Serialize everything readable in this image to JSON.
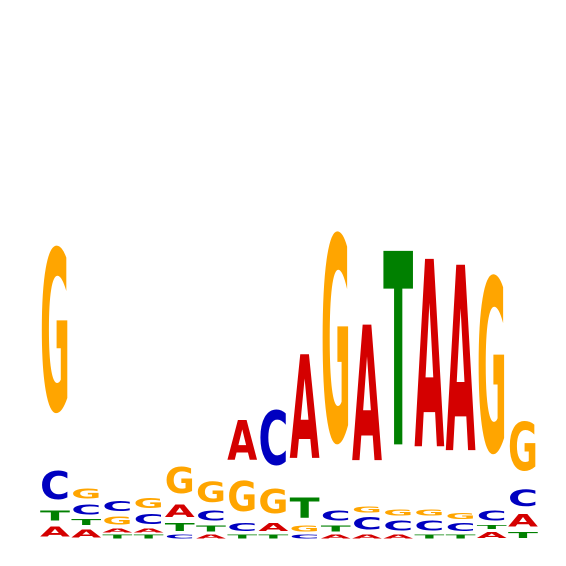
{
  "logo": {
    "type": "sequence-logo",
    "alphabet": [
      "A",
      "C",
      "G",
      "T"
    ],
    "colors": {
      "A": "#d40000",
      "C": "#0000c0",
      "G": "#ffa500",
      "T": "#008000"
    },
    "positions": [
      [
        {
          "base": "A",
          "bits": 0.05
        },
        {
          "base": "T",
          "bits": 0.05
        },
        {
          "base": "C",
          "bits": 0.14
        },
        {
          "base": "G",
          "bits": 0.81
        }
      ],
      [
        {
          "base": "A",
          "bits": 0.04
        },
        {
          "base": "T",
          "bits": 0.03
        },
        {
          "base": "C",
          "bits": 0.05
        },
        {
          "base": "G",
          "bits": 0.05
        }
      ],
      [
        {
          "base": "T",
          "bits": 0.02
        },
        {
          "base": "A",
          "bits": 0.02
        },
        {
          "base": "G",
          "bits": 0.04
        },
        {
          "base": "C",
          "bits": 0.05
        }
      ],
      [
        {
          "base": "T",
          "bits": 0.02
        },
        {
          "base": "A",
          "bits": 0.02
        },
        {
          "base": "C",
          "bits": 0.05
        },
        {
          "base": "G",
          "bits": 0.05
        }
      ],
      [
        {
          "base": "C",
          "bits": 0.02
        },
        {
          "base": "T",
          "bits": 0.04
        },
        {
          "base": "A",
          "bits": 0.06
        },
        {
          "base": "G",
          "bits": 0.13
        }
      ],
      [
        {
          "base": "A",
          "bits": 0.02
        },
        {
          "base": "T",
          "bits": 0.03
        },
        {
          "base": "C",
          "bits": 0.05
        },
        {
          "base": "G",
          "bits": 0.1
        }
      ],
      [
        {
          "base": "T",
          "bits": 0.02
        },
        {
          "base": "C",
          "bits": 0.04
        },
        {
          "base": "G",
          "bits": 0.15
        },
        {
          "base": "A",
          "bits": 0.2
        }
      ],
      [
        {
          "base": "T",
          "bits": 0.02
        },
        {
          "base": "A",
          "bits": 0.04
        },
        {
          "base": "G",
          "bits": 0.12
        },
        {
          "base": "C",
          "bits": 0.27
        }
      ],
      [
        {
          "base": "C",
          "bits": 0.02
        },
        {
          "base": "G",
          "bits": 0.03
        },
        {
          "base": "T",
          "bits": 0.1
        },
        {
          "base": "A",
          "bits": 0.52
        }
      ],
      [
        {
          "base": "A",
          "bits": 0.02
        },
        {
          "base": "T",
          "bits": 0.03
        },
        {
          "base": "C",
          "bits": 0.05
        },
        {
          "base": "G",
          "bits": 1.03
        }
      ],
      [
        {
          "base": "A",
          "bits": 0.02
        },
        {
          "base": "C",
          "bits": 0.06
        },
        {
          "base": "G",
          "bits": 0.03
        },
        {
          "base": "A",
          "bits": 0.0
        },
        {
          "base": "A",
          "bits": 0.68
        }
      ],
      [
        {
          "base": "A",
          "bits": 0.02
        },
        {
          "base": "C",
          "bits": 0.05
        },
        {
          "base": "G",
          "bits": 0.03
        },
        {
          "base": "T",
          "bits": 0.97
        }
      ],
      [
        {
          "base": "T",
          "bits": 0.02
        },
        {
          "base": "C",
          "bits": 0.05
        },
        {
          "base": "G",
          "bits": 0.03
        },
        {
          "base": "A",
          "bits": 0.94
        }
      ],
      [
        {
          "base": "T",
          "bits": 0.02
        },
        {
          "base": "C",
          "bits": 0.04
        },
        {
          "base": "G",
          "bits": 0.03
        },
        {
          "base": "A",
          "bits": 0.93
        }
      ],
      [
        {
          "base": "A",
          "bits": 0.03
        },
        {
          "base": "T",
          "bits": 0.02
        },
        {
          "base": "C",
          "bits": 0.05
        },
        {
          "base": "G",
          "bits": 0.87
        }
      ],
      [
        {
          "base": "T",
          "bits": 0.03
        },
        {
          "base": "A",
          "bits": 0.06
        },
        {
          "base": "C",
          "bits": 0.08
        },
        {
          "base": "G",
          "bits": 0.24
        }
      ]
    ]
  }
}
